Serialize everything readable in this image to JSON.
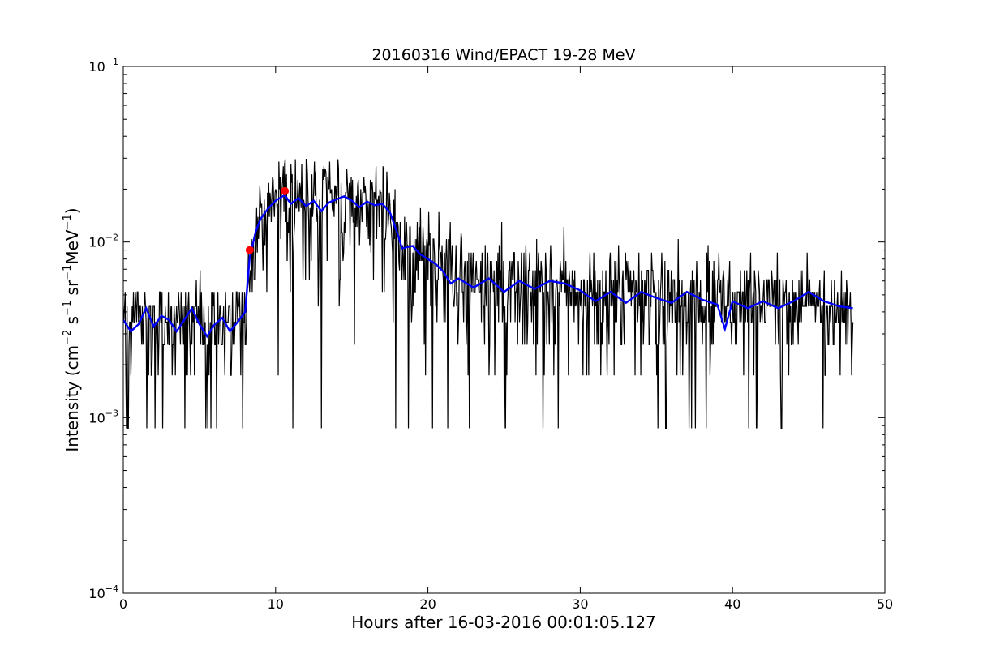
{
  "chart_data": {
    "type": "line",
    "title": "20160316 Wind/EPACT 19-28 MeV",
    "xlabel": "Hours after 16-03-2016 00:01:05.127",
    "ylabel_parts": [
      "Intensity (cm",
      "−2",
      " s",
      "−1",
      " sr",
      "−1",
      "MeV",
      "−1",
      ")"
    ],
    "xlim": [
      0,
      50
    ],
    "ylim": [
      0.0001,
      0.1
    ],
    "yscale": "log",
    "grid": false,
    "x_ticks": [
      0,
      10,
      20,
      30,
      40,
      50
    ],
    "x_tick_labels": [
      "0",
      "10",
      "20",
      "30",
      "40",
      "50"
    ],
    "y_ticks": [
      0.0001,
      0.001,
      0.01,
      0.1
    ],
    "y_tick_labels": [
      {
        "base": "10",
        "exp": "−4"
      },
      {
        "base": "10",
        "exp": "−3"
      },
      {
        "base": "10",
        "exp": "−2"
      },
      {
        "base": "10",
        "exp": "−1"
      }
    ],
    "series": [
      {
        "role": "raw",
        "color": "#000000",
        "levels": [
          0.00087,
          0.00174,
          0.0026,
          0.0035,
          0.0043,
          0.0052,
          0.0061,
          0.0069,
          0.0078,
          0.0087,
          0.0096,
          0.0104,
          0.0113,
          0.0122,
          0.013,
          0.0139,
          0.0148,
          0.0156,
          0.0165,
          0.0174,
          0.0183,
          0.0191,
          0.02,
          0.0209,
          0.0217,
          0.0226,
          0.0235,
          0.0243,
          0.0252,
          0.0261,
          0.027,
          0.0278,
          0.0287,
          0.0296
        ],
        "x_start": 0.0,
        "x_end": 47.9,
        "points": 1150,
        "profile": [
          {
            "x": 0.0,
            "y": 0.0034
          },
          {
            "x": 8.0,
            "y": 0.0034
          },
          {
            "x": 8.3,
            "y": 0.0065
          },
          {
            "x": 9.0,
            "y": 0.0135
          },
          {
            "x": 10.0,
            "y": 0.0175
          },
          {
            "x": 15.0,
            "y": 0.0172
          },
          {
            "x": 17.5,
            "y": 0.0155
          },
          {
            "x": 18.2,
            "y": 0.0095
          },
          {
            "x": 20.0,
            "y": 0.008
          },
          {
            "x": 22.0,
            "y": 0.006
          },
          {
            "x": 30.0,
            "y": 0.0053
          },
          {
            "x": 40.0,
            "y": 0.0044
          },
          {
            "x": 47.9,
            "y": 0.0043
          }
        ]
      },
      {
        "role": "smoothed",
        "color": "#0000ff",
        "points": [
          {
            "x": 0.0,
            "y": 0.0036
          },
          {
            "x": 0.5,
            "y": 0.0031
          },
          {
            "x": 1.0,
            "y": 0.0034
          },
          {
            "x": 1.5,
            "y": 0.0042
          },
          {
            "x": 2.0,
            "y": 0.0033
          },
          {
            "x": 2.5,
            "y": 0.0038
          },
          {
            "x": 3.0,
            "y": 0.0036
          },
          {
            "x": 3.5,
            "y": 0.0031
          },
          {
            "x": 4.0,
            "y": 0.0036
          },
          {
            "x": 4.5,
            "y": 0.0042
          },
          {
            "x": 5.0,
            "y": 0.0034
          },
          {
            "x": 5.5,
            "y": 0.0029
          },
          {
            "x": 6.0,
            "y": 0.0034
          },
          {
            "x": 6.5,
            "y": 0.0037
          },
          {
            "x": 7.0,
            "y": 0.0031
          },
          {
            "x": 7.5,
            "y": 0.0035
          },
          {
            "x": 8.0,
            "y": 0.004
          },
          {
            "x": 8.3,
            "y": 0.0082
          },
          {
            "x": 8.7,
            "y": 0.0115
          },
          {
            "x": 9.0,
            "y": 0.0135
          },
          {
            "x": 9.5,
            "y": 0.0155
          },
          {
            "x": 10.0,
            "y": 0.0172
          },
          {
            "x": 10.6,
            "y": 0.0185
          },
          {
            "x": 11.0,
            "y": 0.0165
          },
          {
            "x": 11.5,
            "y": 0.0178
          },
          {
            "x": 12.0,
            "y": 0.016
          },
          {
            "x": 12.5,
            "y": 0.0172
          },
          {
            "x": 13.0,
            "y": 0.015
          },
          {
            "x": 13.5,
            "y": 0.0168
          },
          {
            "x": 14.0,
            "y": 0.0175
          },
          {
            "x": 14.5,
            "y": 0.0182
          },
          {
            "x": 15.0,
            "y": 0.0172
          },
          {
            "x": 15.5,
            "y": 0.0158
          },
          {
            "x": 16.0,
            "y": 0.017
          },
          {
            "x": 16.5,
            "y": 0.0162
          },
          {
            "x": 17.0,
            "y": 0.0165
          },
          {
            "x": 17.5,
            "y": 0.0148
          },
          {
            "x": 18.0,
            "y": 0.0112
          },
          {
            "x": 18.3,
            "y": 0.0092
          },
          {
            "x": 19.0,
            "y": 0.0095
          },
          {
            "x": 19.5,
            "y": 0.0085
          },
          {
            "x": 20.0,
            "y": 0.008
          },
          {
            "x": 20.5,
            "y": 0.0075
          },
          {
            "x": 21.0,
            "y": 0.0068
          },
          {
            "x": 21.5,
            "y": 0.0058
          },
          {
            "x": 22.0,
            "y": 0.0062
          },
          {
            "x": 23.0,
            "y": 0.0055
          },
          {
            "x": 24.0,
            "y": 0.0062
          },
          {
            "x": 25.0,
            "y": 0.0052
          },
          {
            "x": 26.0,
            "y": 0.006
          },
          {
            "x": 27.0,
            "y": 0.0054
          },
          {
            "x": 28.0,
            "y": 0.006
          },
          {
            "x": 29.0,
            "y": 0.0058
          },
          {
            "x": 30.0,
            "y": 0.0053
          },
          {
            "x": 31.0,
            "y": 0.0046
          },
          {
            "x": 32.0,
            "y": 0.0052
          },
          {
            "x": 33.0,
            "y": 0.0045
          },
          {
            "x": 34.0,
            "y": 0.0052
          },
          {
            "x": 35.0,
            "y": 0.0048
          },
          {
            "x": 36.0,
            "y": 0.0045
          },
          {
            "x": 37.0,
            "y": 0.0052
          },
          {
            "x": 38.0,
            "y": 0.0047
          },
          {
            "x": 39.0,
            "y": 0.0044
          },
          {
            "x": 39.5,
            "y": 0.0032
          },
          {
            "x": 40.0,
            "y": 0.0046
          },
          {
            "x": 41.0,
            "y": 0.0042
          },
          {
            "x": 42.0,
            "y": 0.0046
          },
          {
            "x": 43.0,
            "y": 0.0042
          },
          {
            "x": 44.0,
            "y": 0.0046
          },
          {
            "x": 45.0,
            "y": 0.0052
          },
          {
            "x": 46.0,
            "y": 0.0046
          },
          {
            "x": 47.0,
            "y": 0.0043
          },
          {
            "x": 47.9,
            "y": 0.0042
          }
        ]
      }
    ],
    "markers": [
      {
        "x": 8.3,
        "y": 0.009,
        "color": "#ff0000"
      },
      {
        "x": 10.6,
        "y": 0.0195,
        "color": "#ff0000"
      }
    ]
  }
}
